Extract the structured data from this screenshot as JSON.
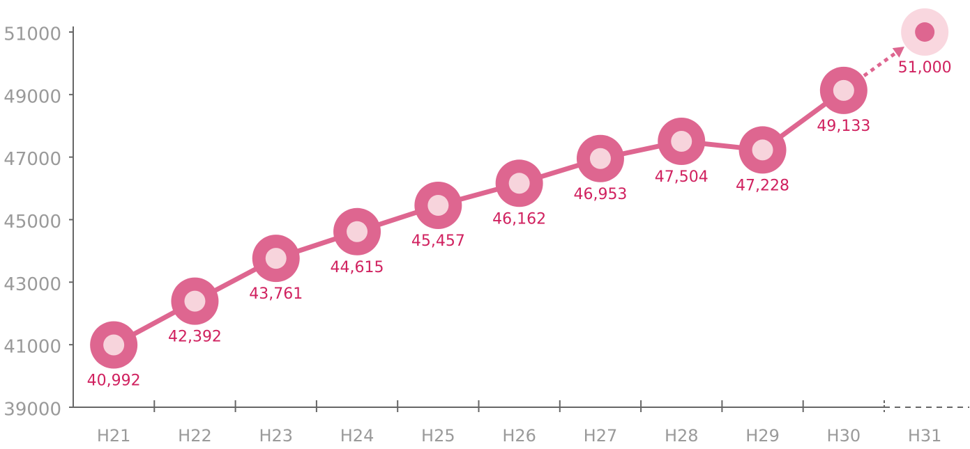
{
  "chart_data": {
    "type": "line",
    "categories": [
      "H21",
      "H22",
      "H23",
      "H24",
      "H25",
      "H26",
      "H27",
      "H28",
      "H29",
      "H30",
      "H31"
    ],
    "values": [
      40992,
      42392,
      43761,
      44615,
      45457,
      46162,
      46953,
      47504,
      47228,
      49133,
      51000
    ],
    "value_labels": [
      "40,992",
      "42,392",
      "43,761",
      "44,615",
      "45,457",
      "46,162",
      "46,953",
      "47,504",
      "47,228",
      "49,133",
      "51,000"
    ],
    "color": "#de6690",
    "ylim": [
      39000,
      51000
    ],
    "yticks": [
      39000,
      41000,
      43000,
      45000,
      47000,
      49000,
      51000
    ],
    "grid": false
  }
}
